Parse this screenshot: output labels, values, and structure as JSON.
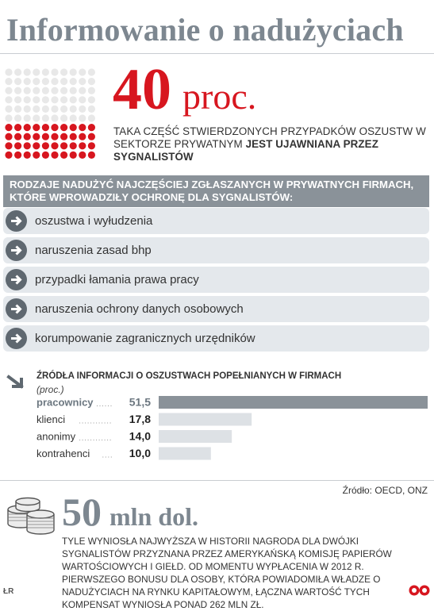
{
  "title": "Informowanie o nadużyciach",
  "stat40": {
    "value": "40",
    "unit": "proc.",
    "description_plain": "Taka część stwierdzonych przypadków oszustw w sektorze prywatnym ",
    "description_bold": "jest ujawniana przez sygnalistów",
    "dots_total": 100,
    "dots_highlighted": 40,
    "colors": {
      "highlight": "#d7161f",
      "base": "#e8e8e8"
    }
  },
  "abuse_section": {
    "header": "Rodzaje nadużyć najczęściej zgłaszanych w prywatnych firmach, które wprowadziły ochronę dla sygnalistów:",
    "items": [
      {
        "label": "oszustwa i wyłudzenia"
      },
      {
        "label": "naruszenia zasad bhp"
      },
      {
        "label": "przypadki łamania prawa pracy"
      },
      {
        "label": "naruszenia ochrony danych osobowych"
      },
      {
        "label": "korumpowanie zagranicznych urzędników"
      }
    ],
    "icon": "arrow-right-icon"
  },
  "chart_data": {
    "type": "bar",
    "orientation": "horizontal",
    "title": "Źródła informacji o oszustwach popełnianych w firmach",
    "unit": "(proc.)",
    "categories": [
      "pracownicy",
      "klienci",
      "anonimy",
      "kontrahenci"
    ],
    "values": [
      51.5,
      17.8,
      14.0,
      10.0
    ],
    "value_labels": [
      "51,5",
      "17,8",
      "14,0",
      "10,0"
    ],
    "highlight_index": 0,
    "xlim": [
      0,
      51.5
    ],
    "grid": false,
    "colors": {
      "highlight_bar": "#8a9299",
      "bar": "#dde1e5",
      "highlight_text": "#6c7780"
    }
  },
  "source": "Źródło: OECD, ONZ",
  "stat50": {
    "value": "50",
    "unit": "mln dol.",
    "description": "Tyle wyniosła najwyższa w historii nagroda dla dwójki sygnalistów przyznana przez amerykańską Komisję Papierów Wartościowych i Giełd. Od momentu wypłacenia w 2012 r. pierwszego bonusu dla osoby, która powiadomiła władze o nadużyciach na rynku kapitałowym, łączna wartość tych kompensat wyniosła ponad 262 mln zł.",
    "icon": "coin-stack-icon"
  },
  "credit": "ŁR",
  "logo_icon": "publisher-logo-icon"
}
